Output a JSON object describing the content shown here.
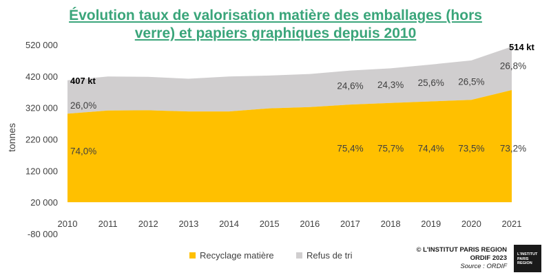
{
  "title_line1": "Évolution taux de valorisation matière des emballages (hors",
  "title_line2": "verre) et papiers graphiques depuis 2010",
  "credit": "© L'INSTITUT PARIS REGION",
  "credit2": "ORDIF 2023",
  "source": "Source : ORDIF",
  "logo_text": [
    "L'INSTITUT",
    "PARIS",
    "REGION"
  ],
  "colors": {
    "recycling": "#ffc000",
    "refusal": "#d0cecf",
    "title": "#3aa57a"
  },
  "chart_data": {
    "type": "area",
    "stacked": true,
    "x": [
      "2010",
      "2011",
      "2012",
      "2013",
      "2014",
      "2015",
      "2016",
      "2017",
      "2018",
      "2019",
      "2020",
      "2021"
    ],
    "ylabel": "tonnes",
    "yticks": [
      "-80 000",
      "20 000",
      "120 000",
      "220 000",
      "320 000",
      "420 000",
      "520 000"
    ],
    "ylim": [
      -80000,
      520000
    ],
    "grid": false,
    "legend_position": "bottom",
    "series": [
      {
        "name": "Recyclage matière",
        "color": "#ffc000",
        "values": [
          301000,
          311000,
          312000,
          308000,
          308000,
          318000,
          322000,
          330000,
          335000,
          340000,
          345000,
          376000
        ]
      },
      {
        "name": "Refus de tri",
        "color": "#d0cecf",
        "values": [
          106000,
          108000,
          106000,
          104000,
          111000,
          104000,
          105000,
          108000,
          110000,
          117000,
          125000,
          138000
        ]
      }
    ],
    "annotations": [
      {
        "text": "407 kt",
        "x": "2010",
        "y": 407000,
        "bold": true
      },
      {
        "text": "514 kt",
        "x": "2021",
        "y": 514000,
        "bold": true
      },
      {
        "text": "26,0%",
        "x": "2010",
        "y": 328000
      },
      {
        "text": "24,6%",
        "x": "2017",
        "y": 390000
      },
      {
        "text": "24,3%",
        "x": "2018",
        "y": 393000
      },
      {
        "text": "25,6%",
        "x": "2019",
        "y": 400000
      },
      {
        "text": "26,5%",
        "x": "2020",
        "y": 403000
      },
      {
        "text": "26,8%",
        "x": "2021",
        "y": 453000
      },
      {
        "text": "74,0%",
        "x": "2010",
        "y": 183000
      },
      {
        "text": "75,4%",
        "x": "2017",
        "y": 192000
      },
      {
        "text": "75,7%",
        "x": "2018",
        "y": 192000
      },
      {
        "text": "74,4%",
        "x": "2019",
        "y": 192000
      },
      {
        "text": "73,5%",
        "x": "2020",
        "y": 192000
      },
      {
        "text": "73,2%",
        "x": "2021",
        "y": 192000
      }
    ]
  }
}
